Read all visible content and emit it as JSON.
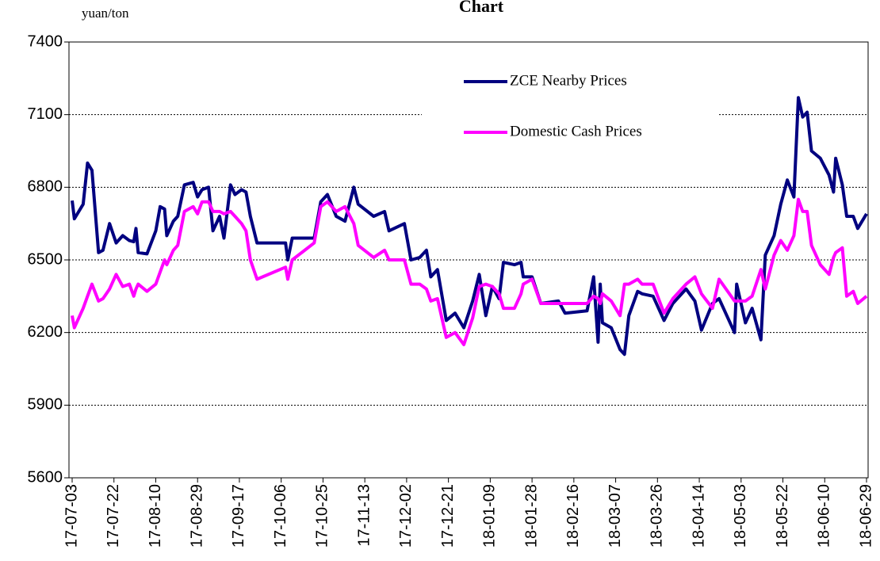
{
  "chart_data": {
    "type": "line",
    "title": "Chart",
    "ylabel": "yuan/ton",
    "x": [
      "17-07-03",
      "17-07-04",
      "17-07-08",
      "17-07-10",
      "17-07-12",
      "17-07-15",
      "17-07-17",
      "17-07-20",
      "17-07-23",
      "17-07-26",
      "17-07-29",
      "17-07-31",
      "17-08-01",
      "17-08-02",
      "17-08-06",
      "17-08-10",
      "17-08-12",
      "17-08-14",
      "17-08-15",
      "17-08-18",
      "17-08-20",
      "17-08-23",
      "17-08-27",
      "17-08-29",
      "17-08-31",
      "17-09-03",
      "17-09-05",
      "17-09-08",
      "17-09-10",
      "17-09-13",
      "17-09-15",
      "17-09-18",
      "17-09-20",
      "17-09-22",
      "17-09-25",
      "17-10-08",
      "17-10-09",
      "17-10-11",
      "17-10-21",
      "17-10-24",
      "17-10-27",
      "17-10-31",
      "17-11-04",
      "17-11-08",
      "17-11-10",
      "17-11-17",
      "17-11-22",
      "17-11-24",
      "17-12-01",
      "17-12-04",
      "17-12-08",
      "17-12-11",
      "17-12-13",
      "17-12-16",
      "17-12-20",
      "17-12-24",
      "17-12-28",
      "18-01-01",
      "18-01-04",
      "18-01-07",
      "18-01-10",
      "18-01-13",
      "18-01-15",
      "18-01-20",
      "18-01-23",
      "18-01-24",
      "18-01-28",
      "18-02-01",
      "18-02-09",
      "18-02-12",
      "18-02-22",
      "18-02-25",
      "18-02-27",
      "18-02-28",
      "18-03-01",
      "18-03-05",
      "18-03-09",
      "18-03-11",
      "18-03-13",
      "18-03-17",
      "18-03-19",
      "18-03-24",
      "18-03-29",
      "18-04-02",
      "18-04-08",
      "18-04-12",
      "18-04-15",
      "18-04-20",
      "18-04-23",
      "18-04-30",
      "18-05-01",
      "18-05-05",
      "18-05-08",
      "18-05-12",
      "18-05-14",
      "18-05-18",
      "18-05-21",
      "18-05-24",
      "18-05-27",
      "18-05-29",
      "18-05-31",
      "18-06-02",
      "18-06-04",
      "18-06-08",
      "18-06-12",
      "18-06-14",
      "18-06-15",
      "18-06-18",
      "18-06-20",
      "18-06-23",
      "18-06-25",
      "18-06-29"
    ],
    "series": [
      {
        "name": "ZCE Nearby Prices",
        "color": "#000080",
        "values": [
          6745,
          6670,
          6730,
          6900,
          6870,
          6530,
          6540,
          6650,
          6570,
          6600,
          6580,
          6575,
          6630,
          6530,
          6525,
          6620,
          6720,
          6710,
          6600,
          6660,
          6680,
          6810,
          6820,
          6760,
          6790,
          6800,
          6620,
          6680,
          6590,
          6810,
          6770,
          6790,
          6780,
          6680,
          6570,
          6570,
          6500,
          6590,
          6590,
          6740,
          6770,
          6680,
          6660,
          6800,
          6730,
          6680,
          6700,
          6620,
          6650,
          6500,
          6510,
          6540,
          6430,
          6460,
          6250,
          6280,
          6220,
          6330,
          6440,
          6270,
          6390,
          6340,
          6490,
          6480,
          6490,
          6430,
          6430,
          6320,
          6330,
          6280,
          6290,
          6430,
          6160,
          6400,
          6240,
          6220,
          6130,
          6110,
          6270,
          6370,
          6360,
          6350,
          6250,
          6320,
          6380,
          6330,
          6210,
          6320,
          6340,
          6200,
          6400,
          6240,
          6300,
          6170,
          6520,
          6600,
          6730,
          6830,
          6760,
          7170,
          7090,
          7110,
          6950,
          6920,
          6850,
          6780,
          6920,
          6810,
          6680,
          6680,
          6630,
          6690
        ]
      },
      {
        "name": "Domestic Cash Prices",
        "color": "#ff00ff",
        "values": [
          6270,
          6220,
          6300,
          6350,
          6400,
          6330,
          6340,
          6380,
          6440,
          6390,
          6400,
          6350,
          6380,
          6400,
          6370,
          6400,
          6450,
          6500,
          6480,
          6540,
          6560,
          6700,
          6720,
          6690,
          6740,
          6740,
          6700,
          6700,
          6690,
          6700,
          6680,
          6650,
          6620,
          6500,
          6420,
          6470,
          6420,
          6500,
          6570,
          6720,
          6740,
          6700,
          6720,
          6650,
          6560,
          6510,
          6540,
          6500,
          6500,
          6400,
          6400,
          6380,
          6330,
          6340,
          6180,
          6200,
          6150,
          6260,
          6390,
          6400,
          6390,
          6360,
          6300,
          6300,
          6360,
          6400,
          6420,
          6320,
          6320,
          6320,
          6320,
          6350,
          6340,
          6320,
          6360,
          6330,
          6270,
          6400,
          6400,
          6420,
          6400,
          6400,
          6280,
          6340,
          6400,
          6430,
          6360,
          6300,
          6420,
          6330,
          6330,
          6330,
          6350,
          6460,
          6380,
          6520,
          6580,
          6540,
          6600,
          6750,
          6700,
          6700,
          6560,
          6480,
          6440,
          6510,
          6530,
          6550,
          6350,
          6370,
          6320,
          6350
        ]
      }
    ],
    "xticks": [
      "17-07-03",
      "17-07-22",
      "17-08-10",
      "17-08-29",
      "17-09-17",
      "17-10-06",
      "17-10-25",
      "17-11-13",
      "17-12-02",
      "17-12-21",
      "18-01-09",
      "18-01-28",
      "18-02-16",
      "18-03-07",
      "18-03-26",
      "18-04-14",
      "18-05-03",
      "18-05-22",
      "18-06-10",
      "18-06-29"
    ],
    "ylim": [
      5600,
      7400
    ],
    "yticks": [
      5600,
      5900,
      6200,
      6500,
      6800,
      7100,
      7400
    ],
    "grid": true,
    "legend": "upper right"
  }
}
